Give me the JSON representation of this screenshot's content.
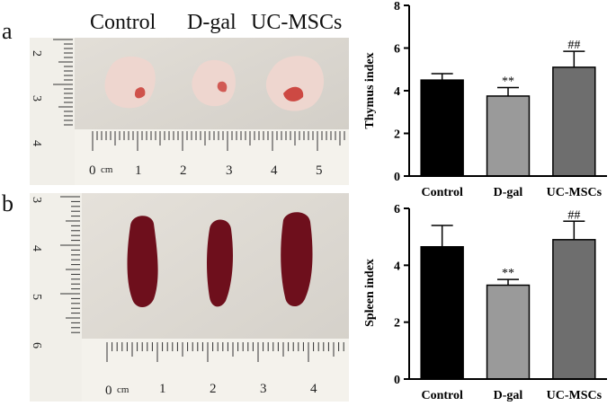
{
  "panel_a_label": "a",
  "panel_b_label": "b",
  "photo_a": {
    "column_headers": [
      "Control",
      "D-gal",
      "UC-MSCs"
    ],
    "ruler_vertical_labels": [
      "2",
      "3",
      "4"
    ],
    "ruler_horizontal_labels": [
      "0",
      "cm",
      "1",
      "2",
      "3",
      "4",
      "5"
    ],
    "tissue_color": "#eed6cf",
    "blood_color": "#c4251f"
  },
  "photo_b": {
    "ruler_vertical_labels": [
      "3",
      "4",
      "5",
      "6"
    ],
    "ruler_horizontal_labels": [
      "0",
      "cm",
      "1",
      "2",
      "3",
      "4"
    ],
    "tissue_color": "#6e0f1c"
  },
  "chart_data": [
    {
      "type": "bar",
      "title": "",
      "xlabel": "",
      "ylabel": "Thymus index",
      "categories": [
        "Control",
        "D-gal",
        "UC-MSCs"
      ],
      "values": [
        4.5,
        3.75,
        5.1
      ],
      "errors": [
        0.3,
        0.4,
        0.75
      ],
      "annotations": [
        "",
        "**",
        "##"
      ],
      "colors": [
        "#000000",
        "#9a9a9a",
        "#6e6e6e"
      ],
      "ylim": [
        0,
        8
      ],
      "yticks": [
        0,
        2,
        4,
        6,
        8
      ]
    },
    {
      "type": "bar",
      "title": "",
      "xlabel": "",
      "ylabel": "Spleen index",
      "categories": [
        "Control",
        "D-gal",
        "UC-MSCs"
      ],
      "values": [
        4.65,
        3.3,
        4.9
      ],
      "errors": [
        0.75,
        0.2,
        0.65
      ],
      "annotations": [
        "",
        "**",
        "##"
      ],
      "colors": [
        "#000000",
        "#9a9a9a",
        "#6e6e6e"
      ],
      "ylim": [
        0,
        6
      ],
      "yticks": [
        0,
        2,
        4,
        6
      ]
    }
  ]
}
